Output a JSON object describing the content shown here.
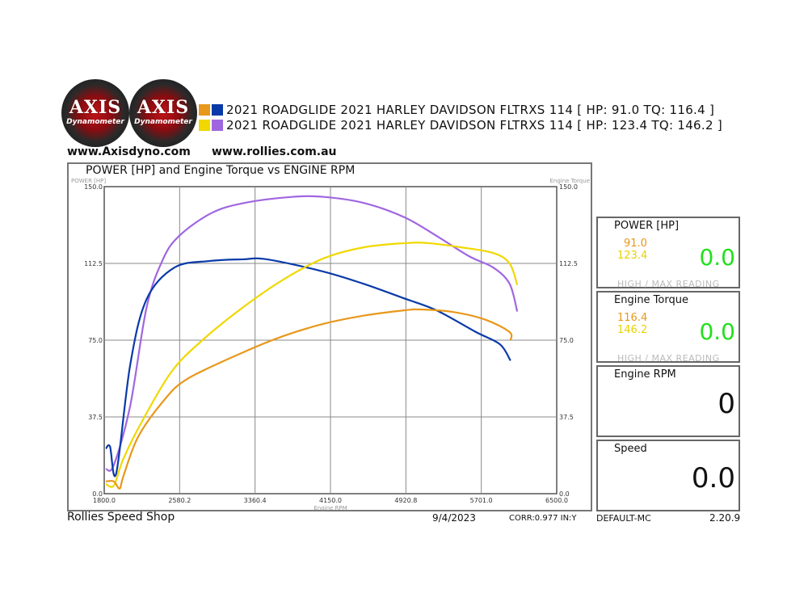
{
  "logos": [
    {
      "text": "AXIS",
      "sub": "Dynamometer"
    },
    {
      "text": "AXIS",
      "sub": "Dynamometer"
    }
  ],
  "legend": [
    {
      "label": "2021 ROADGLIDE 2021 HARLEY DAVIDSON FLTRXS 114 [ HP: 91.0 TQ: 116.4 ]",
      "colors": [
        "#e8981a",
        "#0a3aa8"
      ]
    },
    {
      "label": "2021 ROADGLIDE 2021 HARLEY DAVIDSON FLTRXS 114 [ HP: 123.4 TQ: 146.2 ]",
      "colors": [
        "#f0d800",
        "#a066e0"
      ]
    }
  ],
  "urls": [
    "www.Axisdyno.com",
    "www.rollies.com.au"
  ],
  "chart_data": {
    "type": "line",
    "title": "POWER [HP] and Engine Torque vs ENGINE RPM",
    "ylabel_left": "POWER [HP]",
    "ylabel_right": "Engine Torque",
    "xlabel": "Engine RPM",
    "xlim": [
      1800,
      6500
    ],
    "ylim": [
      0,
      150
    ],
    "xticks": [
      "1800.0",
      "2580.2",
      "3360.4",
      "4150.0",
      "4920.8",
      "5701.0",
      "6500.0"
    ],
    "yticks": [
      "0.0",
      "37.5",
      "75.0",
      "112.5",
      "150.0"
    ],
    "grid": true,
    "series": [
      {
        "color": "#a066e0",
        "points": [
          [
            1817,
            12
          ],
          [
            1900,
            14
          ],
          [
            2070,
            43
          ],
          [
            2240,
            91
          ],
          [
            2410,
            114.5
          ],
          [
            2580,
            126
          ],
          [
            2910,
            137
          ],
          [
            3250,
            142
          ],
          [
            3750,
            145
          ],
          [
            4080,
            145
          ],
          [
            4500,
            142
          ],
          [
            4920,
            135
          ],
          [
            5250,
            126
          ],
          [
            5590,
            116
          ],
          [
            5840,
            110.5
          ],
          [
            6010,
            102.6
          ],
          [
            6090,
            89
          ]
        ]
      },
      {
        "color": "#0a3aa8",
        "points": [
          [
            1817,
            22
          ],
          [
            1860,
            23
          ],
          [
            1925,
            10
          ],
          [
            2070,
            63
          ],
          [
            2240,
            95
          ],
          [
            2530,
            110.5
          ],
          [
            2900,
            113.7
          ],
          [
            3240,
            114.5
          ],
          [
            3490,
            114.5
          ],
          [
            4070,
            108.6
          ],
          [
            4490,
            102.6
          ],
          [
            4910,
            95.5
          ],
          [
            5250,
            89.6
          ],
          [
            5660,
            79
          ],
          [
            5910,
            73
          ],
          [
            6020,
            65
          ]
        ]
      },
      {
        "color": "#f0d800",
        "points": [
          [
            1817,
            4.7
          ],
          [
            1900,
            4
          ],
          [
            1990,
            16
          ],
          [
            2150,
            31.6
          ],
          [
            2490,
            59
          ],
          [
            2820,
            75
          ],
          [
            3240,
            91
          ],
          [
            3660,
            104.6
          ],
          [
            4080,
            115
          ],
          [
            4500,
            120.4
          ],
          [
            4920,
            122.4
          ],
          [
            5170,
            122.4
          ],
          [
            5500,
            120.4
          ],
          [
            5840,
            117.6
          ],
          [
            6010,
            112.5
          ],
          [
            6090,
            102
          ]
        ]
      },
      {
        "color": "#e8981a",
        "points": [
          [
            1817,
            6
          ],
          [
            1900,
            6
          ],
          [
            1960,
            2.5
          ],
          [
            2000,
            8.7
          ],
          [
            2150,
            27.6
          ],
          [
            2410,
            45
          ],
          [
            2660,
            56
          ],
          [
            3240,
            69
          ],
          [
            3660,
            77
          ],
          [
            4080,
            83
          ],
          [
            4500,
            87
          ],
          [
            4920,
            89.6
          ],
          [
            5090,
            90
          ],
          [
            5420,
            88.8
          ],
          [
            5760,
            85
          ],
          [
            6010,
            79
          ],
          [
            6020,
            75
          ]
        ]
      }
    ]
  },
  "panels": {
    "power": {
      "title": "POWER [HP]",
      "high1": "91.0",
      "high2": "123.4",
      "current": "0.0",
      "note": "HIGH / MAX READING"
    },
    "torque": {
      "title": "Engine Torque",
      "high1": "116.4",
      "high2": "146.2",
      "current": "0.0",
      "note": "HIGH / MAX READING"
    },
    "rpm": {
      "title": "Engine RPM",
      "current": "0"
    },
    "speed": {
      "title": "Speed",
      "current": "0.0"
    }
  },
  "footer": {
    "shop": "Rollies Speed Shop",
    "date": "9/4/2023",
    "corr": "CORR:0.977 IN:Y",
    "profile": "DEFAULT-MC",
    "version": "2.20.9"
  }
}
